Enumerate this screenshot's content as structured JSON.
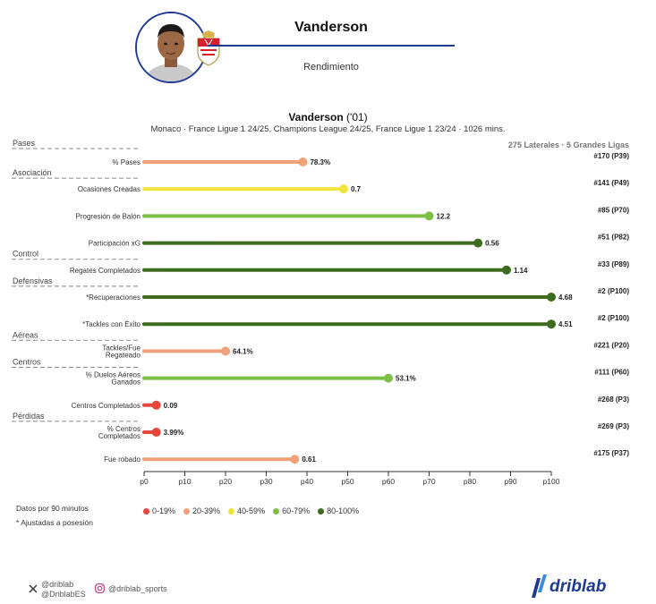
{
  "header": {
    "player_name": "Vanderson",
    "subtitle": "Rendimiento",
    "photo_icon": "player-photo",
    "crest_icon": "as-monaco-crest"
  },
  "chart_title": {
    "name": "Vanderson",
    "year": "('01)"
  },
  "chart_subtitle": "Monaco · France Ligue 1 24/25, Champions League 24/25, France Ligue 1 23/24 · 1026 mins.",
  "sample_note": "275 Laterales · 5 Grandes Ligas",
  "notes": [
    "Datos por 90 minutos",
    "* Ajustadas a posesión"
  ],
  "legend": [
    {
      "label": "0-19%",
      "color": "#e8443a"
    },
    {
      "label": "20-39%",
      "color": "#f0a17a"
    },
    {
      "label": "40-59%",
      "color": "#f2e23c"
    },
    {
      "label": "60-79%",
      "color": "#7cbf45"
    },
    {
      "label": "80-100%",
      "color": "#3d6b1f"
    }
  ],
  "social": {
    "x_handles": [
      "@driblab",
      "@DriblabES"
    ],
    "instagram": "@driblab_sports",
    "brand": "driblab"
  },
  "chart_data": {
    "type": "lollipop",
    "xlabel": "",
    "xlim": [
      0,
      100
    ],
    "x_ticks": [
      "p0",
      "p10",
      "p20",
      "p30",
      "p40",
      "p50",
      "p60",
      "p70",
      "p80",
      "p90",
      "p100"
    ],
    "grid": false,
    "sections": [
      {
        "label": "Pases",
        "first_row": 0
      },
      {
        "label": "Asociación",
        "first_row": 1
      },
      {
        "label": "Control",
        "first_row": 4
      },
      {
        "label": "Defensivas",
        "first_row": 5
      },
      {
        "label": "Aéreas",
        "first_row": 7
      },
      {
        "label": "Centros",
        "first_row": 8
      },
      {
        "label": "Pérdidas",
        "first_row": 10
      }
    ],
    "rows": [
      {
        "metric": [
          "% Pases"
        ],
        "percentile": 39,
        "value": "78.3%",
        "rank": "#170 (P39)",
        "color": "#f0a17a"
      },
      {
        "metric": [
          "Ocasiones Creadas"
        ],
        "percentile": 49,
        "value": "0.7",
        "rank": "#141 (P49)",
        "color": "#f2e23c"
      },
      {
        "metric": [
          "Progresión de Balón"
        ],
        "percentile": 70,
        "value": "12.2",
        "rank": "#85 (P70)",
        "color": "#7cbf45"
      },
      {
        "metric": [
          "Participación xG"
        ],
        "percentile": 82,
        "value": "0.56",
        "rank": "#51 (P82)",
        "color": "#3d6b1f"
      },
      {
        "metric": [
          "Regates Completados"
        ],
        "percentile": 89,
        "value": "1.14",
        "rank": "#33 (P89)",
        "color": "#3d6b1f"
      },
      {
        "metric": [
          "*Recuperaciones"
        ],
        "percentile": 100,
        "value": "4.68",
        "rank": "#2 (P100)",
        "color": "#3d6b1f"
      },
      {
        "metric": [
          "*Tackles con Éxito"
        ],
        "percentile": 100,
        "value": "4.51",
        "rank": "#2 (P100)",
        "color": "#3d6b1f"
      },
      {
        "metric": [
          "Tackles/Fue",
          "Regateado"
        ],
        "percentile": 20,
        "value": "64.1%",
        "rank": "#221 (P20)",
        "color": "#f0a17a"
      },
      {
        "metric": [
          "% Duelos Aéreos",
          "Ganados"
        ],
        "percentile": 60,
        "value": "53.1%",
        "rank": "#111 (P60)",
        "color": "#7cbf45"
      },
      {
        "metric": [
          "Centros Completados"
        ],
        "percentile": 3,
        "value": "0.09",
        "rank": "#268 (P3)",
        "color": "#e8443a"
      },
      {
        "metric": [
          "% Centros",
          "Completados"
        ],
        "percentile": 3,
        "value": "3.99%",
        "rank": "#269 (P3)",
        "color": "#e8443a"
      },
      {
        "metric": [
          "Fue robado"
        ],
        "percentile": 37,
        "value": "0.61",
        "rank": "#175 (P37)",
        "color": "#f0a17a"
      }
    ]
  }
}
